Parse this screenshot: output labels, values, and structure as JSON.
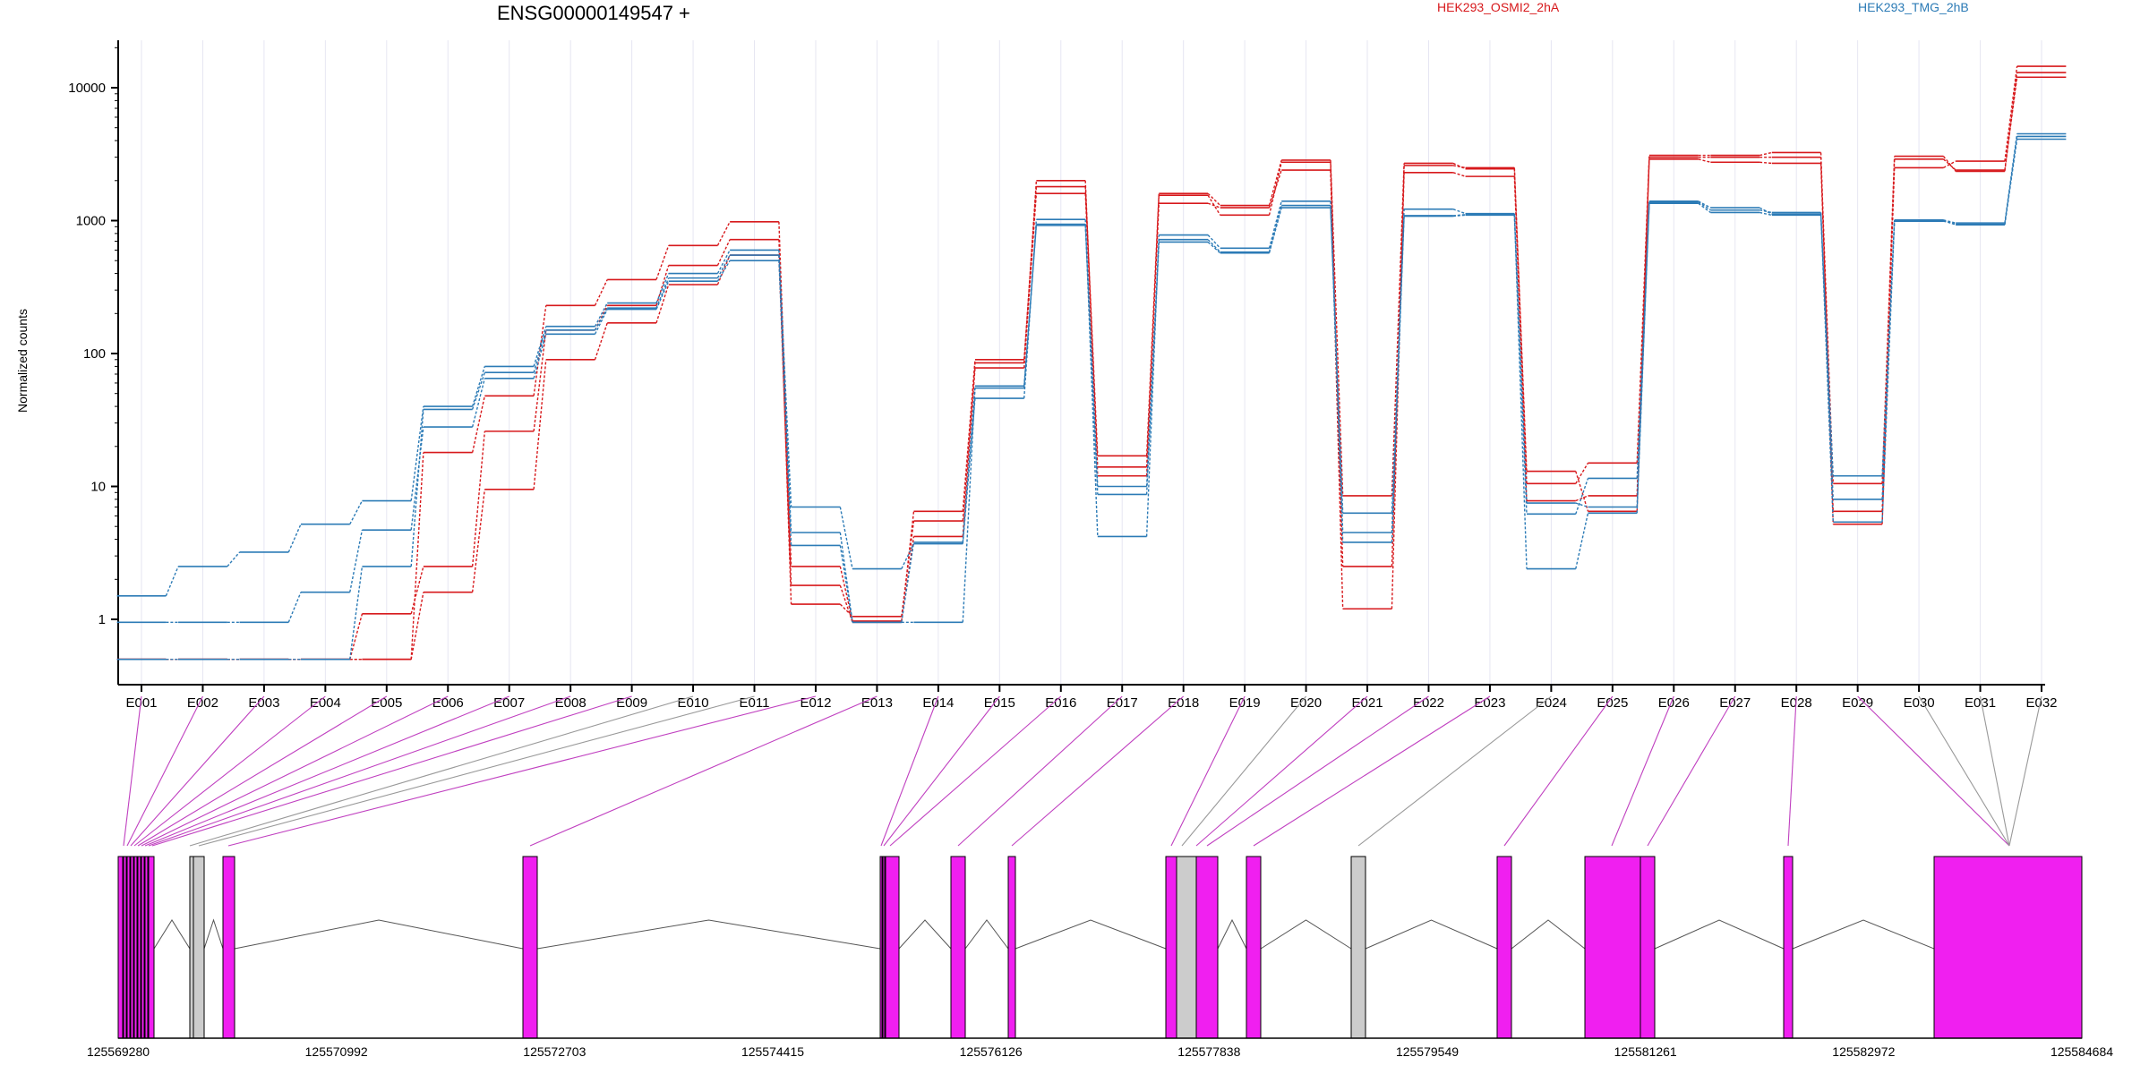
{
  "title": "ENSG00000149547 +",
  "colors": {
    "group1": "#d7191c",
    "group2": "#2c7bb6",
    "exon_used": "#f01ff0",
    "exon_other": "#cccccc",
    "connector_used": "#c040c0",
    "connector_other": "#999999"
  },
  "chart_data": {
    "type": "line",
    "title": "ENSG00000149547 +",
    "xlabel": "",
    "ylabel": "Normalized counts",
    "y_scale": "log",
    "y_ticks": [
      "1",
      "10",
      "100",
      "1000",
      "10000"
    ],
    "categories": [
      "E001",
      "E002",
      "E003",
      "E004",
      "E005",
      "E006",
      "E007",
      "E008",
      "E009",
      "E010",
      "E011",
      "E012",
      "E013",
      "E014",
      "E015",
      "E016",
      "E017",
      "E018",
      "E019",
      "E020",
      "E021",
      "E022",
      "E023",
      "E024",
      "E025",
      "E026",
      "E027",
      "E028",
      "E029",
      "E030",
      "E031",
      "E032"
    ],
    "legend": [
      {
        "label": "HEK293_OSMI2_2hA",
        "color": "#d7191c"
      },
      {
        "label": "HEK293_TMG_2hB",
        "color": "#2c7bb6"
      }
    ],
    "series": [
      {
        "name": "HEK293_OSMI2_2hA",
        "values": [
          0.5,
          0.5,
          0.5,
          0.5,
          0.5,
          1.6,
          9.5,
          90,
          170,
          330,
          550,
          1.8,
          0.95,
          4.2,
          78,
          1600,
          14,
          1350,
          1250,
          2400,
          1.2,
          2300,
          2150,
          7.8,
          8.5,
          2900,
          2750,
          2700,
          6.5,
          2900,
          2400,
          12000
        ]
      },
      {
        "name": "HEK293_OSMI2_2hA",
        "values": [
          0.5,
          0.5,
          0.5,
          0.5,
          1.1,
          2.5,
          26,
          150,
          230,
          460,
          720,
          1.3,
          1.05,
          5.5,
          85,
          2000,
          12,
          1550,
          1100,
          2750,
          2.5,
          2600,
          2500,
          10.5,
          15,
          3100,
          3100,
          3250,
          5.2,
          2500,
          2800,
          14500
        ]
      },
      {
        "name": "HEK293_OSMI2_2hA",
        "values": [
          0.5,
          0.5,
          0.5,
          0.5,
          0.5,
          18,
          48,
          230,
          360,
          650,
          980,
          2.5,
          0.97,
          6.5,
          90,
          1800,
          17,
          1600,
          1300,
          2850,
          8.5,
          2700,
          2450,
          13,
          6.5,
          3000,
          3000,
          3000,
          10.5,
          3050,
          2350,
          13000
        ]
      },
      {
        "name": "HEK293_TMG_2hB",
        "values": [
          1.5,
          2.5,
          3.2,
          5.2,
          7.8,
          40,
          80,
          160,
          240,
          400,
          600,
          7,
          2.4,
          3.7,
          46,
          1020,
          4.2,
          780,
          620,
          1400,
          3.8,
          1220,
          1130,
          2.4,
          6.3,
          1400,
          1250,
          1120,
          5.4,
          1010,
          960,
          4500
        ]
      },
      {
        "name": "HEK293_TMG_2hB",
        "values": [
          0.95,
          0.95,
          0.95,
          1.6,
          4.7,
          28,
          65,
          140,
          215,
          350,
          500,
          3.6,
          0.95,
          0.95,
          55,
          940,
          8.7,
          690,
          570,
          1250,
          6.3,
          1090,
          1110,
          6.2,
          11.5,
          1350,
          1150,
          1100,
          12,
          990,
          940,
          4300
        ]
      },
      {
        "name": "HEK293_TMG_2hB",
        "values": [
          0.5,
          0.5,
          0.5,
          0.5,
          2.5,
          38,
          72,
          150,
          220,
          370,
          550,
          4.5,
          0.95,
          3.8,
          57,
          920,
          10,
          720,
          580,
          1300,
          4.5,
          1080,
          1100,
          7.5,
          7,
          1380,
          1200,
          1150,
          8,
          1000,
          930,
          4100
        ]
      }
    ]
  },
  "gene_model": {
    "positions": [
      "125569280",
      "125570992",
      "125572703",
      "125574415",
      "125576126",
      "125577838",
      "125579549",
      "125581261",
      "125582972",
      "125584684"
    ]
  }
}
